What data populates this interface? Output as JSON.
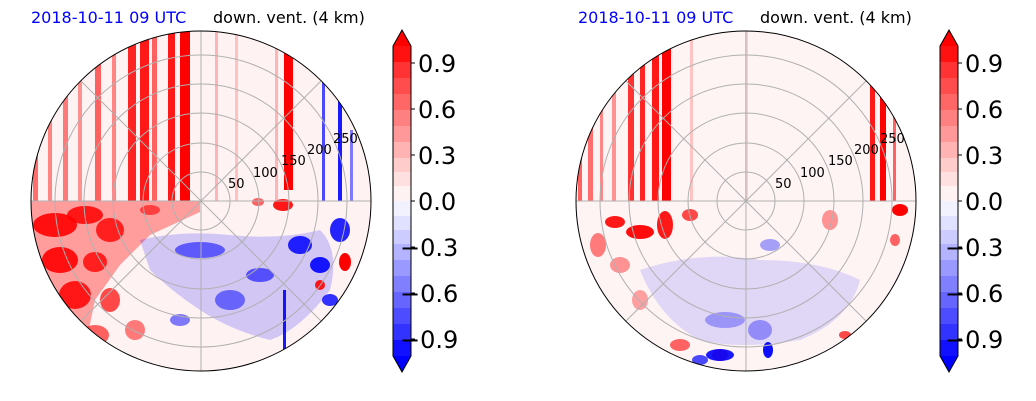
{
  "panels": [
    {
      "date_label": "2018-10-11 09 UTC",
      "title": "down. vent. (4 km)",
      "radial_ticks": [
        "50",
        "100",
        "150",
        "200",
        "250"
      ],
      "colorbar_ticks": [
        "0.9",
        "0.6",
        "0.3",
        "0.0",
        "−0.3",
        "−0.6",
        "−0.9"
      ]
    },
    {
      "date_label": "2018-10-11 09 UTC",
      "title": "down. vent. (4 km)",
      "radial_ticks": [
        "50",
        "100",
        "150",
        "200",
        "250"
      ],
      "colorbar_ticks": [
        "0.9",
        "0.6",
        "0.3",
        "0.0",
        "−0.3",
        "−0.6",
        "−0.9"
      ]
    }
  ],
  "chart_data": [
    {
      "type": "heatmap",
      "projection": "polar",
      "title": "down. vent. (4 km)",
      "subtitle": "2018-10-11 09 UTC",
      "r_ticks": [
        50,
        100,
        150,
        200,
        250
      ],
      "r_max": 290,
      "colorbar": {
        "vmin": -1.0,
        "vmax": 1.0,
        "ticks": [
          0.9,
          0.6,
          0.3,
          0.0,
          -0.3,
          -0.6,
          -0.9
        ],
        "colormap": "bwr",
        "extend": "both"
      },
      "colors": {
        "positive": "#ff0000",
        "negative": "#0000ff",
        "neutral": "#ffffff",
        "grid": "#b0b0b0"
      }
    },
    {
      "type": "heatmap",
      "projection": "polar",
      "title": "down. vent. (4 km)",
      "subtitle": "2018-10-11 09 UTC",
      "r_ticks": [
        50,
        100,
        150,
        200,
        250
      ],
      "r_max": 290,
      "colorbar": {
        "vmin": -1.0,
        "vmax": 1.0,
        "ticks": [
          0.9,
          0.6,
          0.3,
          0.0,
          -0.3,
          -0.6,
          -0.9
        ],
        "colormap": "bwr",
        "extend": "both"
      },
      "colors": {
        "positive": "#ff0000",
        "negative": "#0000ff",
        "neutral": "#ffffff",
        "grid": "#b0b0b0"
      }
    }
  ]
}
